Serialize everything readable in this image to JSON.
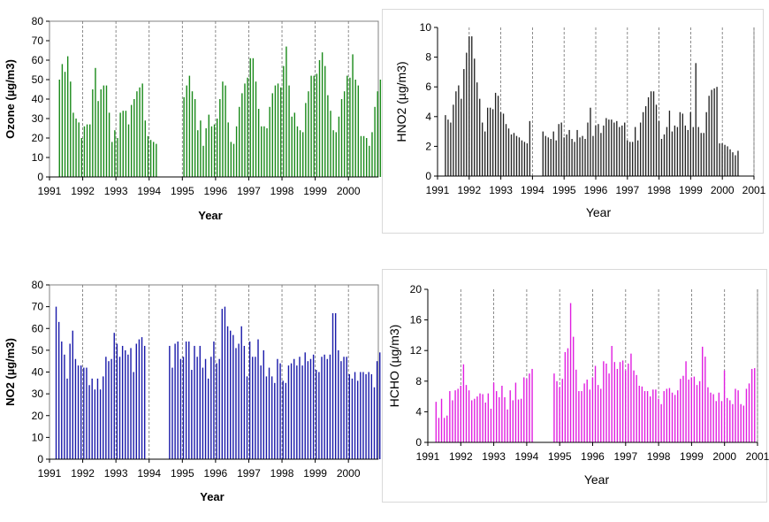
{
  "chart_data": [
    {
      "id": "ozone",
      "type": "bar",
      "title": "",
      "xlabel": "Year",
      "ylabel": "Ozone (µg/m3)",
      "ylim": [
        0,
        80
      ],
      "yticks": [
        0,
        10,
        20,
        30,
        40,
        50,
        60,
        70,
        80
      ],
      "xlim": [
        1991,
        2000.9
      ],
      "xticks": [
        "1991",
        "1992",
        "1993",
        "1994",
        "1995",
        "1996",
        "1997",
        "1998",
        "1999",
        "2000"
      ],
      "gridlines": [
        1992,
        1993,
        1994,
        1995,
        1996,
        1997,
        1998,
        1999,
        2000
      ],
      "color": "#1a8a1a",
      "start": 1991.3,
      "step": 0.0833,
      "values": [
        50,
        58,
        54,
        62,
        49,
        33,
        30,
        28,
        20,
        26,
        27,
        27,
        45,
        56,
        39,
        45,
        47,
        47,
        33,
        18,
        24,
        20,
        33,
        34,
        34,
        27,
        37,
        40,
        44,
        46,
        48,
        29,
        21,
        19,
        18,
        17,
        null,
        null,
        null,
        null,
        null,
        null,
        null,
        null,
        null,
        41,
        47,
        52,
        44,
        40,
        24,
        29,
        16,
        25,
        32,
        26,
        27,
        30,
        40,
        49,
        47,
        28,
        18,
        17,
        26,
        36,
        43,
        48,
        51,
        61,
        61,
        49,
        35,
        26,
        26,
        25,
        36,
        43,
        47,
        48,
        46,
        57,
        67,
        47,
        31,
        33,
        26,
        24,
        23,
        38,
        44,
        52,
        52,
        53,
        60,
        64,
        57,
        42,
        34,
        24,
        23,
        31,
        40,
        44,
        52,
        51,
        63,
        50,
        47,
        21,
        21,
        20,
        16,
        23,
        36,
        44,
        50,
        55,
        52,
        55
      ]
    },
    {
      "id": "hno2",
      "type": "bar",
      "title": "",
      "xlabel": "Year",
      "ylabel": "HNO2 (µg/m3)",
      "ylim": [
        0,
        10
      ],
      "yticks": [
        0,
        2,
        4,
        6,
        8,
        10
      ],
      "xlim": [
        1991,
        2001
      ],
      "xticks": [
        "1991",
        "1992",
        "1993",
        "1994",
        "1995",
        "1996",
        "1997",
        "1998",
        "1999",
        "2000",
        "2001"
      ],
      "gridlines": [
        1992,
        1993,
        1994,
        1995,
        1996,
        1997,
        1998,
        1999,
        2000,
        2001
      ],
      "color": "#222222",
      "start": 1991.25,
      "step": 0.0833,
      "values": [
        4.1,
        3.8,
        3.6,
        4.8,
        5.7,
        6.1,
        5.2,
        7.2,
        8.3,
        9.4,
        9.4,
        7.9,
        6.3,
        5.2,
        3.6,
        3.0,
        4.6,
        4.6,
        4.5,
        5.6,
        5.4,
        4.3,
        4.2,
        3.5,
        3.2,
        2.8,
        2.9,
        2.7,
        2.6,
        2.4,
        2.3,
        2.2,
        3.7,
        null,
        null,
        null,
        null,
        3.0,
        2.7,
        2.6,
        2.5,
        3.0,
        2.4,
        3.5,
        3.6,
        2.6,
        2.8,
        3.1,
        2.5,
        2.3,
        3.1,
        2.6,
        2.7,
        2.5,
        3.6,
        4.6,
        2.7,
        3.4,
        3.5,
        2.9,
        3.4,
        3.9,
        3.8,
        3.8,
        3.6,
        3.7,
        3.3,
        3.4,
        3.6,
        2.4,
        2.3,
        2.3,
        3.3,
        2.4,
        3.6,
        4.3,
        4.7,
        5.3,
        5.7,
        5.7,
        4.8,
        3.7,
        2.5,
        2.8,
        3.3,
        4.4,
        3.0,
        3.4,
        3.3,
        4.3,
        4.2,
        3.4,
        3.1,
        4.3,
        3.3,
        7.6,
        3.3,
        2.9,
        2.9,
        4.3,
        5.4,
        5.8,
        5.9,
        6.0,
        2.2,
        2.2,
        2.1,
        2.0,
        1.8,
        1.6,
        1.4,
        1.7
      ]
    },
    {
      "id": "no2",
      "type": "bar",
      "title": "",
      "xlabel": "Year",
      "ylabel": "NO2 (µg/m3)",
      "ylim": [
        0,
        80
      ],
      "yticks": [
        0,
        10,
        20,
        30,
        40,
        50,
        60,
        70,
        80
      ],
      "xlim": [
        1991,
        2000.9
      ],
      "xticks": [
        "1991",
        "1992",
        "1993",
        "1994",
        "1995",
        "1996",
        "1997",
        "1998",
        "1999",
        "2000"
      ],
      "gridlines": [
        1992,
        1993,
        1994,
        1995,
        1996,
        1997,
        1998,
        1999,
        2000
      ],
      "color": "#1a1aaa",
      "start": 1991.2,
      "step": 0.0833,
      "values": [
        70,
        63,
        54,
        48,
        37,
        53,
        59,
        46,
        43,
        43,
        42,
        42,
        34,
        37,
        32,
        37,
        32,
        38,
        47,
        45,
        46,
        58,
        53,
        47,
        52,
        50,
        48,
        51,
        40,
        53,
        55,
        56,
        52,
        null,
        null,
        null,
        null,
        null,
        null,
        null,
        null,
        52,
        42,
        53,
        54,
        46,
        47,
        54,
        54,
        41,
        52,
        47,
        52,
        42,
        46,
        37,
        47,
        54,
        44,
        46,
        69,
        70,
        61,
        59,
        57,
        51,
        53,
        61,
        52,
        38,
        54,
        47,
        47,
        55,
        43,
        50,
        38,
        42,
        38,
        35,
        46,
        44,
        36,
        35,
        43,
        44,
        46,
        43,
        47,
        43,
        49,
        45,
        46,
        48,
        41,
        40,
        47,
        48,
        46,
        48,
        67,
        67,
        50,
        45,
        47,
        47,
        39,
        37,
        40,
        36,
        40,
        40,
        39,
        40,
        39,
        33,
        45,
        49
      ]
    },
    {
      "id": "hcho",
      "type": "bar",
      "title": "",
      "xlabel": "Year",
      "ylabel": "HCHO (µg/m3)",
      "ylim": [
        0,
        20
      ],
      "yticks": [
        0,
        4,
        8,
        12,
        16,
        20
      ],
      "xlim": [
        1991,
        2001
      ],
      "xticks": [
        "1991",
        "1992",
        "1993",
        "1994",
        "1995",
        "1996",
        "1997",
        "1998",
        "1999",
        "2000",
        "2001"
      ],
      "gridlines": [
        1992,
        1993,
        1994,
        1995,
        1996,
        1997,
        1998,
        1999,
        2000,
        2001
      ],
      "color": "#e01ee0",
      "start": 1991.25,
      "step": 0.0833,
      "values": [
        5.3,
        3.2,
        5.7,
        3.2,
        3.5,
        6.7,
        5.5,
        6.8,
        7.0,
        7.4,
        10.2,
        7.5,
        6.8,
        5.5,
        5.7,
        6.0,
        6.4,
        6.3,
        5.2,
        6.4,
        4.4,
        7.8,
        6.7,
        5.9,
        7.4,
        5.9,
        4.3,
        6.8,
        5.5,
        7.8,
        5.6,
        5.7,
        8.5,
        8.3,
        9.0,
        9.6,
        null,
        null,
        null,
        null,
        null,
        null,
        null,
        9.0,
        8.0,
        7.2,
        8.3,
        11.8,
        12.3,
        18.2,
        13.8,
        9.5,
        6.7,
        6.7,
        7.7,
        8.2,
        6.9,
        8.5,
        10.0,
        7.5,
        7.0,
        10.6,
        10.3,
        9.0,
        12.6,
        10.5,
        9.6,
        10.5,
        10.7,
        9.4,
        10.3,
        11.6,
        9.4,
        8.8,
        7.4,
        7.3,
        6.7,
        6.7,
        6.0,
        6.9,
        6.9,
        5.7,
        5.0,
        6.7,
        7.0,
        7.1,
        6.5,
        6.2,
        6.8,
        8.3,
        8.7,
        10.6,
        8.2,
        8.5,
        8.6,
        7.5,
        8.0,
        12.5,
        11.2,
        7.2,
        6.5,
        6.3,
        5.4,
        6.5,
        5.4,
        9.4,
        5.8,
        5.5,
        5.0,
        7.0,
        6.8,
        5.0,
        4.8,
        7.0,
        7.7,
        9.6,
        9.7
      ]
    }
  ]
}
